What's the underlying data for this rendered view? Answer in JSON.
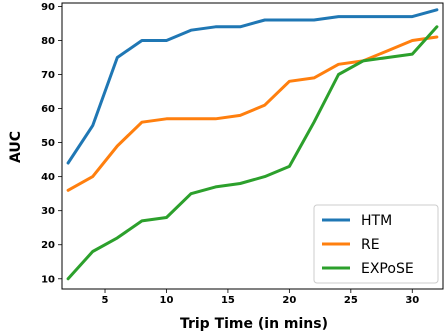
{
  "chart_data": {
    "type": "line",
    "title": "",
    "xlabel": "Trip Time (in mins)",
    "ylabel": "AUC",
    "xlim": [
      1.5,
      32.5
    ],
    "ylim": [
      7,
      91
    ],
    "xticks": [
      5,
      10,
      15,
      20,
      25,
      30
    ],
    "yticks": [
      10,
      20,
      30,
      40,
      50,
      60,
      70,
      80,
      90
    ],
    "grid": false,
    "legend": "bottom-right",
    "x": [
      2,
      4,
      6,
      8,
      10,
      12,
      14,
      16,
      18,
      20,
      22,
      24,
      26,
      28,
      30,
      32
    ],
    "series": [
      {
        "name": "HTM",
        "color": "#1f77b4",
        "values": [
          44,
          55,
          75,
          80,
          80,
          83,
          84,
          84,
          86,
          86,
          86,
          87,
          87,
          87,
          87,
          89
        ]
      },
      {
        "name": "RE",
        "color": "#ff7f0e",
        "values": [
          36,
          40,
          49,
          56,
          57,
          57,
          57,
          58,
          61,
          68,
          69,
          73,
          74,
          77,
          80,
          81
        ]
      },
      {
        "name": "EXPoSE",
        "color": "#2ca02c",
        "values": [
          10,
          18,
          22,
          27,
          28,
          35,
          37,
          38,
          40,
          43,
          56,
          70,
          74,
          75,
          76,
          84
        ]
      }
    ]
  }
}
